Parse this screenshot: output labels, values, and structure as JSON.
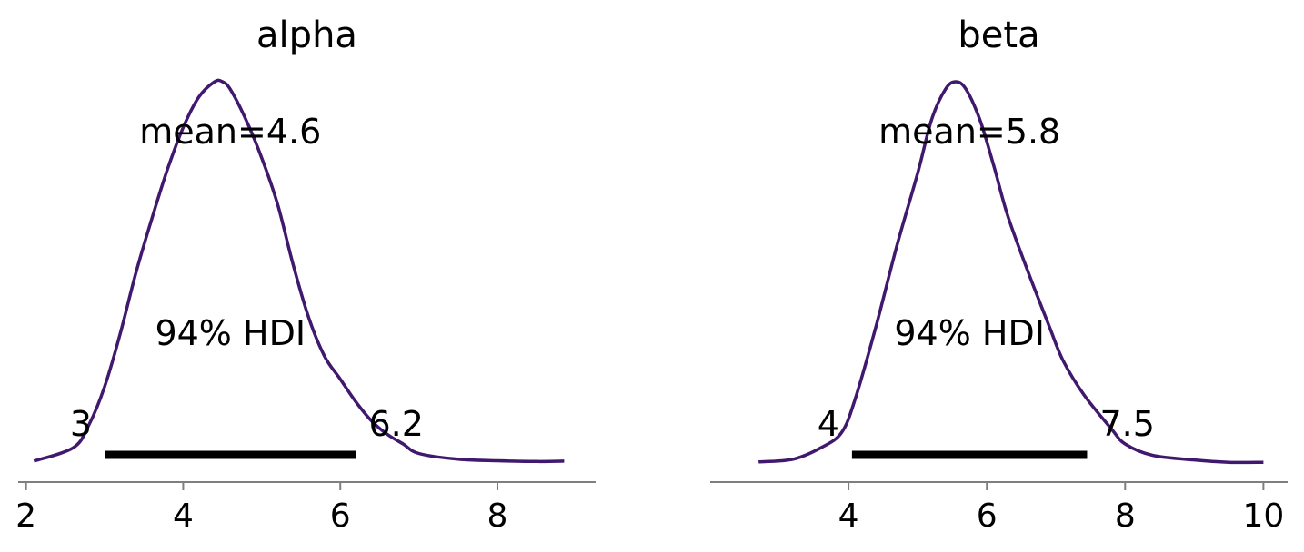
{
  "chart_data": [
    {
      "type": "line",
      "title": "alpha",
      "xlabel": "",
      "ylabel": "",
      "xlim": [
        1.9,
        9.25
      ],
      "xticks": [
        2,
        4,
        6,
        8
      ],
      "tick_labels": [
        "2",
        "4",
        "6",
        "8"
      ],
      "color": "#40196e",
      "hdi_color": "#000000",
      "density": {
        "x": [
          2.1,
          2.6,
          2.8,
          3.0,
          3.2,
          3.4,
          3.6,
          3.8,
          4.0,
          4.2,
          4.4,
          4.5,
          4.6,
          4.8,
          5.0,
          5.2,
          5.4,
          5.6,
          5.8,
          6.0,
          6.2,
          6.4,
          6.6,
          6.8,
          7.0,
          7.5,
          8.0,
          8.5,
          8.85
        ],
        "y": [
          0.005,
          0.04,
          0.1,
          0.2,
          0.34,
          0.5,
          0.64,
          0.77,
          0.88,
          0.96,
          1.0,
          1.0,
          0.98,
          0.9,
          0.8,
          0.68,
          0.52,
          0.38,
          0.28,
          0.22,
          0.16,
          0.11,
          0.075,
          0.05,
          0.025,
          0.01,
          0.006,
          0.004,
          0.005
        ]
      },
      "mean_label": "mean=4.6",
      "hdi_label": "94% HDI",
      "hdi": [
        3.0,
        6.2
      ],
      "hdi_low_label": "3",
      "hdi_high_label": "6.2"
    },
    {
      "type": "line",
      "title": "beta",
      "xlabel": "",
      "ylabel": "",
      "xlim": [
        2.0,
        10.35
      ],
      "xticks": [
        4,
        6,
        8,
        10
      ],
      "tick_labels": [
        "4",
        "6",
        "8",
        "10"
      ],
      "color": "#40196e",
      "hdi_color": "#000000",
      "density": {
        "x": [
          2.7,
          3.2,
          3.6,
          3.9,
          4.1,
          4.4,
          4.7,
          5.0,
          5.2,
          5.4,
          5.55,
          5.7,
          5.9,
          6.1,
          6.3,
          6.6,
          6.9,
          7.1,
          7.4,
          7.8,
          8.0,
          8.4,
          9.0,
          9.5,
          10.0
        ],
        "y": [
          0.003,
          0.01,
          0.04,
          0.08,
          0.17,
          0.36,
          0.57,
          0.76,
          0.9,
          0.98,
          1.0,
          0.98,
          0.9,
          0.78,
          0.65,
          0.5,
          0.36,
          0.27,
          0.18,
          0.09,
          0.05,
          0.02,
          0.008,
          0.002,
          0.002
        ]
      },
      "mean_label": "mean=5.8",
      "hdi_label": "94% HDI",
      "hdi": [
        4.05,
        7.45
      ],
      "hdi_low_label": "4",
      "hdi_high_label": "7.5"
    }
  ]
}
